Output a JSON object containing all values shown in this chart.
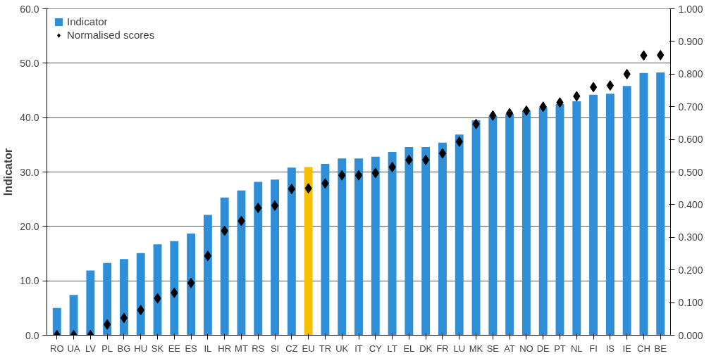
{
  "chart_data": {
    "type": "bar",
    "ylabel": "Indicator",
    "categories": [
      "RO",
      "UA",
      "LV",
      "PL",
      "BG",
      "HU",
      "SK",
      "EE",
      "ES",
      "IL",
      "HR",
      "MT",
      "RS",
      "SI",
      "CZ",
      "EU",
      "TR",
      "UK",
      "IT",
      "CY",
      "LT",
      "EL",
      "DK",
      "FR",
      "LU",
      "MK",
      "SE",
      "AT",
      "NO",
      "DE",
      "PT",
      "NL",
      "FI",
      "IS",
      "IE",
      "CH",
      "BE"
    ],
    "series": [
      {
        "name": "Indicator",
        "color": "#2e8fd8",
        "colors": [
          "#2e8fd8",
          "#2e8fd8",
          "#2e8fd8",
          "#2e8fd8",
          "#2e8fd8",
          "#2e8fd8",
          "#2e8fd8",
          "#2e8fd8",
          "#2e8fd8",
          "#2e8fd8",
          "#2e8fd8",
          "#2e8fd8",
          "#2e8fd8",
          "#2e8fd8",
          "#2e8fd8",
          "#f5c000",
          "#2e8fd8",
          "#2e8fd8",
          "#2e8fd8",
          "#2e8fd8",
          "#2e8fd8",
          "#2e8fd8",
          "#2e8fd8",
          "#2e8fd8",
          "#2e8fd8",
          "#2e8fd8",
          "#2e8fd8",
          "#2e8fd8",
          "#2e8fd8",
          "#2e8fd8",
          "#2e8fd8",
          "#2e8fd8",
          "#2e8fd8",
          "#2e8fd8",
          "#2e8fd8",
          "#2e8fd8",
          "#2e8fd8"
        ],
        "values": [
          5.0,
          7.4,
          11.9,
          13.3,
          14.0,
          15.1,
          16.7,
          17.3,
          18.7,
          22.1,
          25.3,
          26.6,
          28.2,
          28.6,
          30.8,
          30.9,
          31.5,
          32.5,
          32.5,
          32.8,
          33.7,
          34.6,
          34.6,
          35.4,
          36.9,
          39.5,
          40.3,
          40.7,
          41.3,
          41.9,
          42.5,
          43.0,
          44.2,
          44.4,
          45.8,
          48.2,
          48.3
        ]
      },
      {
        "name": "Normalised scores",
        "type": "scatter",
        "axis": "y2",
        "marker": "diamond",
        "color": "#000000",
        "values": [
          0,
          0,
          0,
          0.033,
          0.053,
          0.077,
          0.113,
          0.13,
          0.16,
          0.243,
          0.32,
          0.35,
          0.39,
          0.397,
          0.448,
          0.45,
          0.465,
          0.49,
          0.49,
          0.497,
          0.515,
          0.537,
          0.537,
          0.557,
          0.593,
          0.647,
          0.673,
          0.68,
          0.688,
          0.7,
          0.713,
          0.732,
          0.76,
          0.765,
          0.8,
          0.857,
          0.858
        ]
      }
    ],
    "ylim": [
      0,
      60
    ],
    "yticks": [
      {
        "value": 0,
        "label": "0.0"
      },
      {
        "value": 10,
        "label": "10.0"
      },
      {
        "value": 20,
        "label": "20.0"
      },
      {
        "value": 30,
        "label": "30.0"
      },
      {
        "value": 40,
        "label": "40.0"
      },
      {
        "value": 50,
        "label": "50.0"
      },
      {
        "value": 60,
        "label": "60.0"
      }
    ],
    "y2lim": [
      0,
      1
    ],
    "y2ticks": [
      {
        "value": 0,
        "label": "0.000"
      },
      {
        "value": 0.1,
        "label": "0.100"
      },
      {
        "value": 0.2,
        "label": "0.200"
      },
      {
        "value": 0.3,
        "label": "0.300"
      },
      {
        "value": 0.4,
        "label": "0.400"
      },
      {
        "value": 0.5,
        "label": "0.500"
      },
      {
        "value": 0.6,
        "label": "0.600"
      },
      {
        "value": 0.7,
        "label": "0.700"
      },
      {
        "value": 0.8,
        "label": "0.800"
      },
      {
        "value": 0.9,
        "label": "0.900"
      },
      {
        "value": 1,
        "label": "1.000"
      }
    ],
    "grid": "y",
    "legend": "top left"
  }
}
